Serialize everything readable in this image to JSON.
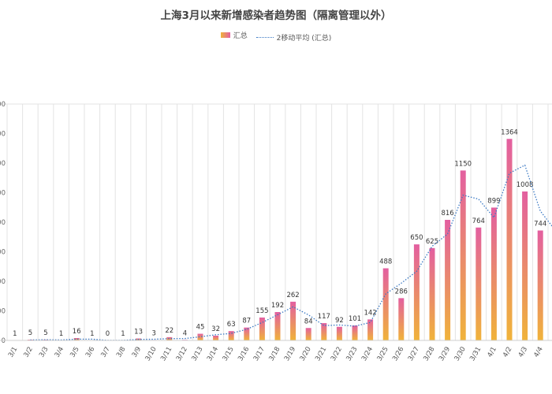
{
  "chart_data": {
    "type": "bar",
    "title": "上海3月以来新增感染者趋势图（隔离管理以外）",
    "xlabel": "",
    "ylabel": "",
    "ylim": [
      0,
      1600
    ],
    "yticks_visible": [
      "00",
      "00",
      "00",
      "00",
      "00",
      "00",
      "00",
      "00",
      "0"
    ],
    "categories": [
      "3/1",
      "3/2",
      "3/3",
      "3/4",
      "3/5",
      "3/6",
      "3/7",
      "3/8",
      "3/9",
      "3/10",
      "3/11",
      "3/12",
      "3/13",
      "3/14",
      "3/15",
      "3/16",
      "3/17",
      "3/18",
      "3/19",
      "3/20",
      "3/21",
      "3/22",
      "3/23",
      "3/24",
      "3/25",
      "3/26",
      "3/27",
      "3/28",
      "3/29",
      "3/30",
      "3/31",
      "4/1",
      "4/2",
      "4/3",
      "4/4"
    ],
    "series": [
      {
        "name": "汇总",
        "kind": "bar",
        "values": [
          1,
          5,
          5,
          1,
          16,
          1,
          0,
          1,
          13,
          3,
          22,
          4,
          45,
          32,
          63,
          87,
          155,
          192,
          262,
          84,
          117,
          92,
          101,
          142,
          488,
          286,
          650,
          625,
          816,
          1150,
          764,
          899,
          1364,
          1008,
          744
        ]
      },
      {
        "name": "2移动平均 (汇总)",
        "kind": "line",
        "values": [
          null,
          3,
          5,
          3,
          8.5,
          8.5,
          0.5,
          0.5,
          7,
          8,
          12.5,
          13,
          24.5,
          38.5,
          47.5,
          75,
          121,
          173.5,
          227,
          173,
          100.5,
          104.5,
          96.5,
          121.5,
          315,
          387,
          468,
          637.5,
          720.5,
          983,
          957,
          831.5,
          1131.5,
          1186,
          876
        ]
      }
    ],
    "legend_position": "top-center",
    "grid": "vertical",
    "colors": {
      "bar_top": "#e35fa0",
      "bar_bottom": "#f0b33a",
      "line": "#3a78c3",
      "grid": "#e3e3e3"
    }
  }
}
